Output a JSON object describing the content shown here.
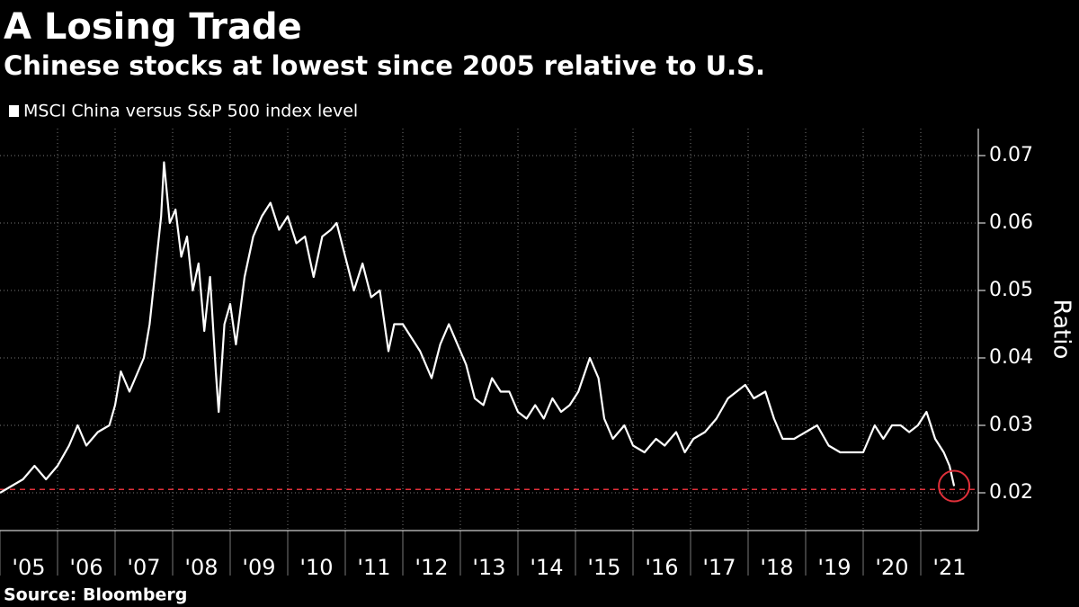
{
  "chart_data": {
    "type": "line",
    "title": "A Losing Trade",
    "subtitle": "Chinese stocks at lowest since 2005 relative to U.S.",
    "ylabel": "Ratio",
    "source": "Source: Bloomberg",
    "legend": "top-left",
    "grid": true,
    "xlim": [
      2005,
      2022
    ],
    "ylim": [
      0.015,
      0.074
    ],
    "yticks": [
      0.02,
      0.03,
      0.04,
      0.05,
      0.06,
      0.07
    ],
    "xticks": [
      {
        "value": 2005,
        "label": "'05"
      },
      {
        "value": 2006,
        "label": "'06"
      },
      {
        "value": 2007,
        "label": "'07"
      },
      {
        "value": 2008,
        "label": "'08"
      },
      {
        "value": 2009,
        "label": "'09"
      },
      {
        "value": 2010,
        "label": "'10"
      },
      {
        "value": 2011,
        "label": "'11"
      },
      {
        "value": 2012,
        "label": "'12"
      },
      {
        "value": 2013,
        "label": "'13"
      },
      {
        "value": 2014,
        "label": "'14"
      },
      {
        "value": 2015,
        "label": "'15"
      },
      {
        "value": 2016,
        "label": "'16"
      },
      {
        "value": 2017,
        "label": "'17"
      },
      {
        "value": 2018,
        "label": "'18"
      },
      {
        "value": 2019,
        "label": "'19"
      },
      {
        "value": 2020,
        "label": "'20"
      },
      {
        "value": 2021,
        "label": "'21"
      }
    ],
    "reference_line": {
      "value": 0.0205,
      "color": "#e0303a"
    },
    "x": [
      2005.0,
      2005.2,
      2005.4,
      2005.6,
      2005.8,
      2006.0,
      2006.2,
      2006.35,
      2006.5,
      2006.7,
      2006.9,
      2007.0,
      2007.1,
      2007.25,
      2007.4,
      2007.5,
      2007.6,
      2007.7,
      2007.8,
      2007.85,
      2007.95,
      2008.05,
      2008.15,
      2008.25,
      2008.35,
      2008.45,
      2008.55,
      2008.65,
      2008.75,
      2008.8,
      2008.9,
      2009.0,
      2009.1,
      2009.25,
      2009.4,
      2009.55,
      2009.7,
      2009.85,
      2010.0,
      2010.15,
      2010.3,
      2010.45,
      2010.6,
      2010.75,
      2010.85,
      2011.0,
      2011.15,
      2011.3,
      2011.45,
      2011.6,
      2011.75,
      2011.85,
      2012.0,
      2012.15,
      2012.3,
      2012.5,
      2012.65,
      2012.8,
      2012.95,
      2013.1,
      2013.25,
      2013.4,
      2013.55,
      2013.7,
      2013.85,
      2014.0,
      2014.15,
      2014.3,
      2014.45,
      2014.6,
      2014.75,
      2014.9,
      2015.05,
      2015.25,
      2015.4,
      2015.5,
      2015.65,
      2015.85,
      2016.0,
      2016.2,
      2016.4,
      2016.55,
      2016.75,
      2016.9,
      2017.05,
      2017.25,
      2017.45,
      2017.65,
      2017.8,
      2017.95,
      2018.1,
      2018.3,
      2018.45,
      2018.6,
      2018.8,
      2019.0,
      2019.2,
      2019.4,
      2019.6,
      2019.8,
      2020.0,
      2020.2,
      2020.35,
      2020.5,
      2020.65,
      2020.8,
      2020.95,
      2021.1,
      2021.25,
      2021.4,
      2021.5,
      2021.58
    ],
    "series": [
      {
        "name": "MSCI China versus S&P 500 index level",
        "color": "#ffffff",
        "values": [
          0.02,
          0.021,
          0.022,
          0.024,
          0.022,
          0.024,
          0.027,
          0.03,
          0.027,
          0.029,
          0.03,
          0.033,
          0.038,
          0.035,
          0.038,
          0.04,
          0.045,
          0.053,
          0.061,
          0.069,
          0.06,
          0.062,
          0.055,
          0.058,
          0.05,
          0.054,
          0.044,
          0.052,
          0.038,
          0.032,
          0.045,
          0.048,
          0.042,
          0.052,
          0.058,
          0.061,
          0.063,
          0.059,
          0.061,
          0.057,
          0.058,
          0.052,
          0.058,
          0.059,
          0.06,
          0.055,
          0.05,
          0.054,
          0.049,
          0.05,
          0.041,
          0.045,
          0.045,
          0.043,
          0.041,
          0.037,
          0.042,
          0.045,
          0.042,
          0.039,
          0.034,
          0.033,
          0.037,
          0.035,
          0.035,
          0.032,
          0.031,
          0.033,
          0.031,
          0.034,
          0.032,
          0.033,
          0.035,
          0.04,
          0.037,
          0.031,
          0.028,
          0.03,
          0.027,
          0.026,
          0.028,
          0.027,
          0.029,
          0.026,
          0.028,
          0.029,
          0.031,
          0.034,
          0.035,
          0.036,
          0.034,
          0.035,
          0.031,
          0.028,
          0.028,
          0.029,
          0.03,
          0.027,
          0.026,
          0.026,
          0.026,
          0.03,
          0.028,
          0.03,
          0.03,
          0.029,
          0.03,
          0.032,
          0.028,
          0.026,
          0.024,
          0.021
        ]
      }
    ]
  }
}
